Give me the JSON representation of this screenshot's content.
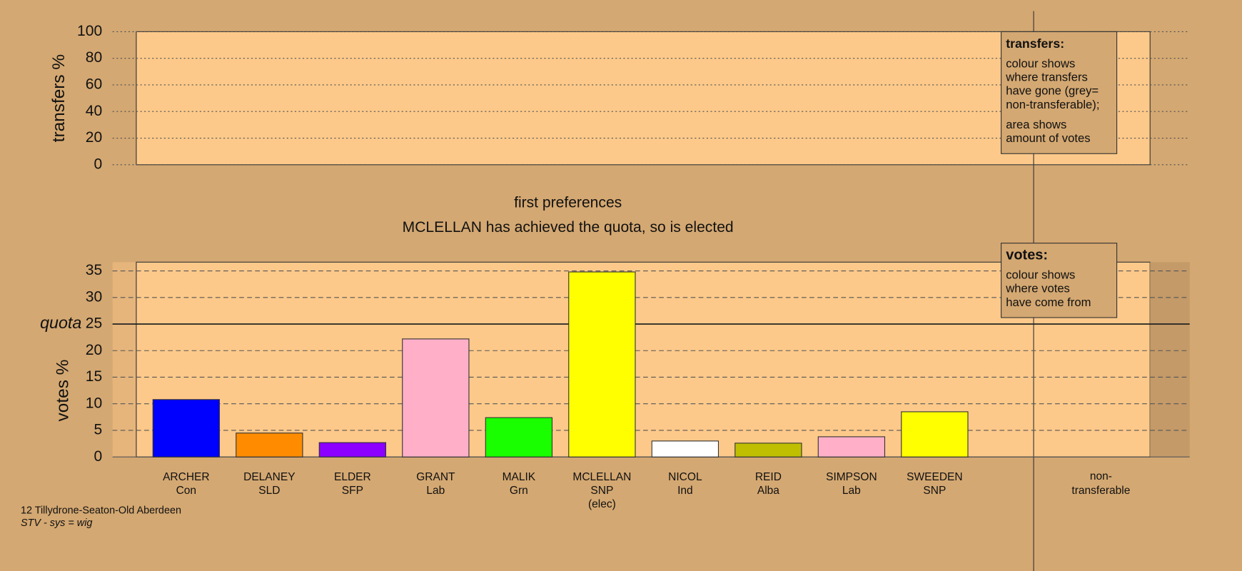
{
  "chart_data": [
    {
      "type": "bar",
      "y_label": "transfers %",
      "ylim": [
        0,
        100
      ],
      "yticks": [
        0,
        20,
        40,
        60,
        80,
        100
      ],
      "categories": [],
      "values": []
    },
    {
      "type": "bar",
      "title": "first preferences",
      "subtitle": "MCLELLAN has achieved the quota, so is elected",
      "y_label": "votes %",
      "ylim": [
        0,
        36.6
      ],
      "yticks": [
        0,
        5,
        10,
        15,
        20,
        25,
        30,
        35
      ],
      "quota": {
        "label": "quota",
        "value": 25
      },
      "categories": [
        [
          "ARCHER",
          "Con"
        ],
        [
          "DELANEY",
          "SLD"
        ],
        [
          "ELDER",
          "SFP"
        ],
        [
          "GRANT",
          "Lab"
        ],
        [
          "MALIK",
          "Grn"
        ],
        [
          "MCLELLAN",
          "SNP",
          "(elec)"
        ],
        [
          "NICOL",
          "Ind"
        ],
        [
          "REID",
          "Alba"
        ],
        [
          "SIMPSON",
          "Lab"
        ],
        [
          "SWEEDEN",
          "SNP"
        ]
      ],
      "values": [
        10.8,
        4.5,
        2.7,
        22.2,
        7.4,
        34.8,
        3.0,
        2.6,
        3.8,
        8.5
      ],
      "colors": [
        "#0000ff",
        "#ff8c00",
        "#8b00ff",
        "#ffb0c8",
        "#1aff00",
        "#ffff00",
        "#ffffff",
        "#bfbf00",
        "#ffb0c8",
        "#ffff00"
      ],
      "extra_category": [
        "non-",
        "transferable"
      ]
    }
  ],
  "legends": {
    "transfers": {
      "title": "transfers:",
      "paragraphs": [
        [
          "colour shows",
          "where transfers",
          "have gone (grey=",
          "non-transferable);"
        ],
        [
          "area shows",
          "amount of votes"
        ]
      ]
    },
    "votes": {
      "title": "votes:",
      "paragraphs": [
        [
          "colour shows",
          "where votes",
          "have come from"
        ]
      ]
    }
  },
  "footer": [
    "12 Tillydrone-Seaton-Old Aberdeen",
    "STV - sys = wig"
  ]
}
